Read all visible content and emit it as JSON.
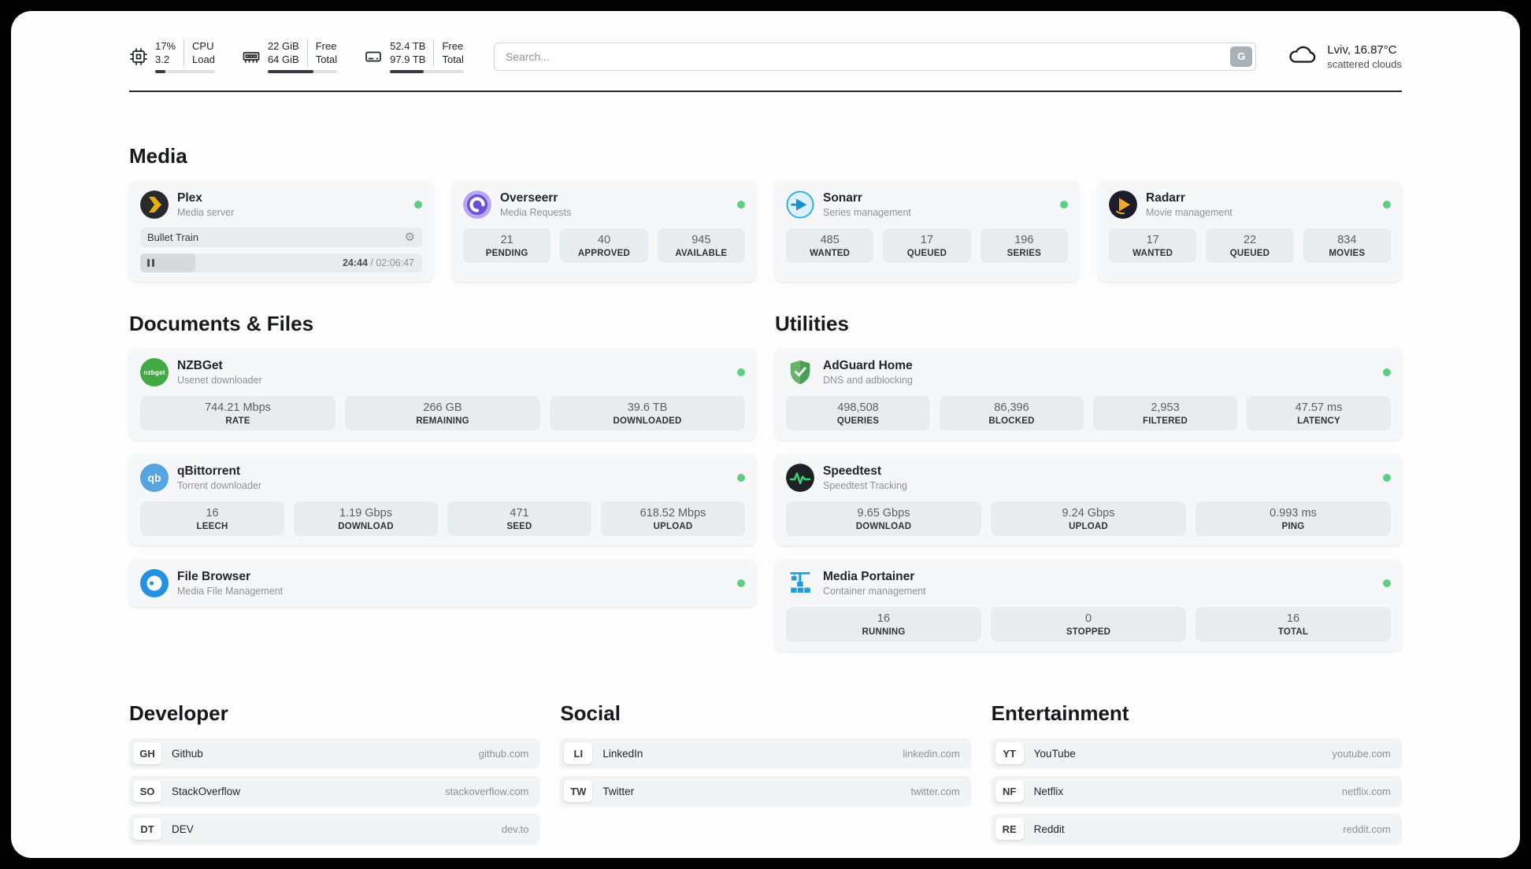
{
  "topbar": {
    "cpu": {
      "value": "17%",
      "load": "3.2",
      "label_top": "CPU",
      "label_bottom": "Load",
      "percent": 17
    },
    "memory": {
      "free": "22 GiB",
      "total": "64 GiB",
      "label_top": "Free",
      "label_bottom": "Total",
      "percent": 66
    },
    "disk": {
      "free": "52.4 TB",
      "total": "97.9 TB",
      "label_top": "Free",
      "label_bottom": "Total",
      "percent": 46
    },
    "search": {
      "placeholder": "Search...",
      "button_label": "G"
    },
    "weather": {
      "location": "Lviv, 16.87°C",
      "condition": "scattered clouds"
    }
  },
  "icons": {
    "gear": "⚙",
    "nzbget_text": "nzbget",
    "qb_text": "qb"
  },
  "colors": {
    "status_online": "#5ecf82",
    "accent_plex": "#ebaf00",
    "accent_adguard": "#67b26a"
  },
  "sections": {
    "media": {
      "title": "Media",
      "plex": {
        "name": "Plex",
        "subtitle": "Media server",
        "now_playing": "Bullet Train",
        "time_current": "24:44",
        "time_total": " / 02:06:47",
        "progress_percent": 19.5
      },
      "overseerr": {
        "name": "Overseerr",
        "subtitle": "Media Requests",
        "stats": [
          {
            "value": "21",
            "label": "PENDING"
          },
          {
            "value": "40",
            "label": "APPROVED"
          },
          {
            "value": "945",
            "label": "AVAILABLE"
          }
        ]
      },
      "sonarr": {
        "name": "Sonarr",
        "subtitle": "Series management",
        "stats": [
          {
            "value": "485",
            "label": "WANTED"
          },
          {
            "value": "17",
            "label": "QUEUED"
          },
          {
            "value": "196",
            "label": "SERIES"
          }
        ]
      },
      "radarr": {
        "name": "Radarr",
        "subtitle": "Movie management",
        "stats": [
          {
            "value": "17",
            "label": "WANTED"
          },
          {
            "value": "22",
            "label": "QUEUED"
          },
          {
            "value": "834",
            "label": "MOVIES"
          }
        ]
      }
    },
    "documents": {
      "title": "Documents & Files",
      "nzbget": {
        "name": "NZBGet",
        "subtitle": "Usenet downloader",
        "stats": [
          {
            "value": "744.21 Mbps",
            "label": "RATE"
          },
          {
            "value": "266 GB",
            "label": "REMAINING"
          },
          {
            "value": "39.6 TB",
            "label": "DOWNLOADED"
          }
        ]
      },
      "qbittorrent": {
        "name": "qBittorrent",
        "subtitle": "Torrent downloader",
        "stats": [
          {
            "value": "16",
            "label": "LEECH"
          },
          {
            "value": "1.19 Gbps",
            "label": "DOWNLOAD"
          },
          {
            "value": "471",
            "label": "SEED"
          },
          {
            "value": "618.52 Mbps",
            "label": "UPLOAD"
          }
        ]
      },
      "filebrowser": {
        "name": "File Browser",
        "subtitle": "Media File Management"
      }
    },
    "utilities": {
      "title": "Utilities",
      "adguard": {
        "name": "AdGuard Home",
        "subtitle": "DNS and adblocking",
        "stats": [
          {
            "value": "498,508",
            "label": "QUERIES"
          },
          {
            "value": "86,396",
            "label": "BLOCKED"
          },
          {
            "value": "2,953",
            "label": "FILTERED"
          },
          {
            "value": "47.57 ms",
            "label": "LATENCY"
          }
        ]
      },
      "speedtest": {
        "name": "Speedtest",
        "subtitle": "Speedtest Tracking",
        "stats": [
          {
            "value": "9.65 Gbps",
            "label": "DOWNLOAD"
          },
          {
            "value": "9.24 Gbps",
            "label": "UPLOAD"
          },
          {
            "value": "0.993 ms",
            "label": "PING"
          }
        ]
      },
      "portainer": {
        "name": "Media Portainer",
        "subtitle": "Container management",
        "stats": [
          {
            "value": "16",
            "label": "RUNNING"
          },
          {
            "value": "0",
            "label": "STOPPED"
          },
          {
            "value": "16",
            "label": "TOTAL"
          }
        ]
      }
    },
    "developer": {
      "title": "Developer",
      "links": [
        {
          "abbr": "GH",
          "name": "Github",
          "url": "github.com"
        },
        {
          "abbr": "SO",
          "name": "StackOverflow",
          "url": "stackoverflow.com"
        },
        {
          "abbr": "DT",
          "name": "DEV",
          "url": "dev.to"
        }
      ]
    },
    "social": {
      "title": "Social",
      "links": [
        {
          "abbr": "LI",
          "name": "LinkedIn",
          "url": "linkedin.com"
        },
        {
          "abbr": "TW",
          "name": "Twitter",
          "url": "twitter.com"
        }
      ]
    },
    "entertainment": {
      "title": "Entertainment",
      "links": [
        {
          "abbr": "YT",
          "name": "YouTube",
          "url": "youtube.com"
        },
        {
          "abbr": "NF",
          "name": "Netflix",
          "url": "netflix.com"
        },
        {
          "abbr": "RE",
          "name": "Reddit",
          "url": "reddit.com"
        }
      ]
    }
  }
}
